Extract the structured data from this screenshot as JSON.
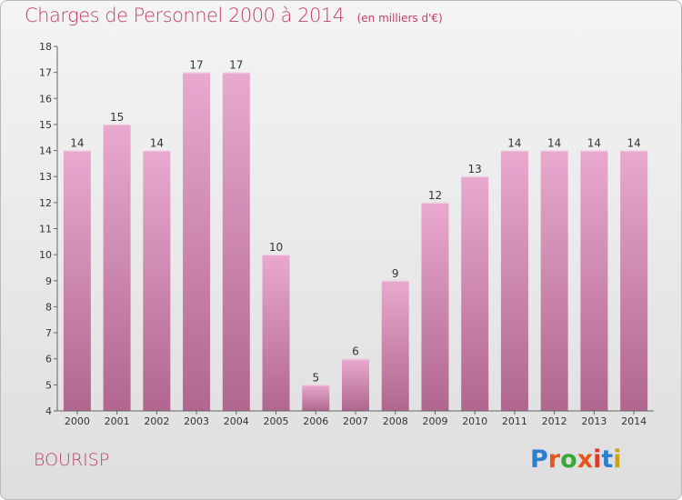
{
  "title": "Charges de Personnel 2000 à 2014",
  "subtitle": "(en milliers d'€)",
  "commune": "BOURISP",
  "logo": "Proxiti",
  "colors": {
    "title": "#c0406a",
    "bar_top": "#e9a9cf",
    "bar_bottom": "#b0668f",
    "axis": "#555555"
  },
  "chart_data": {
    "type": "bar",
    "title": "Charges de Personnel 2000 à 2014",
    "subtitle": "(en milliers d'€)",
    "categories": [
      "2000",
      "2001",
      "2002",
      "2003",
      "2004",
      "2005",
      "2006",
      "2007",
      "2008",
      "2009",
      "2010",
      "2011",
      "2012",
      "2013",
      "2014"
    ],
    "values": [
      14,
      15,
      14,
      17,
      17,
      10,
      5,
      6,
      9,
      12,
      13,
      14,
      14,
      14,
      14
    ],
    "yticks": [
      4,
      5,
      6,
      7,
      8,
      9,
      10,
      11,
      12,
      13,
      14,
      15,
      16,
      17,
      18
    ],
    "ylim": [
      4,
      18
    ],
    "grid": false,
    "legend": "none"
  }
}
